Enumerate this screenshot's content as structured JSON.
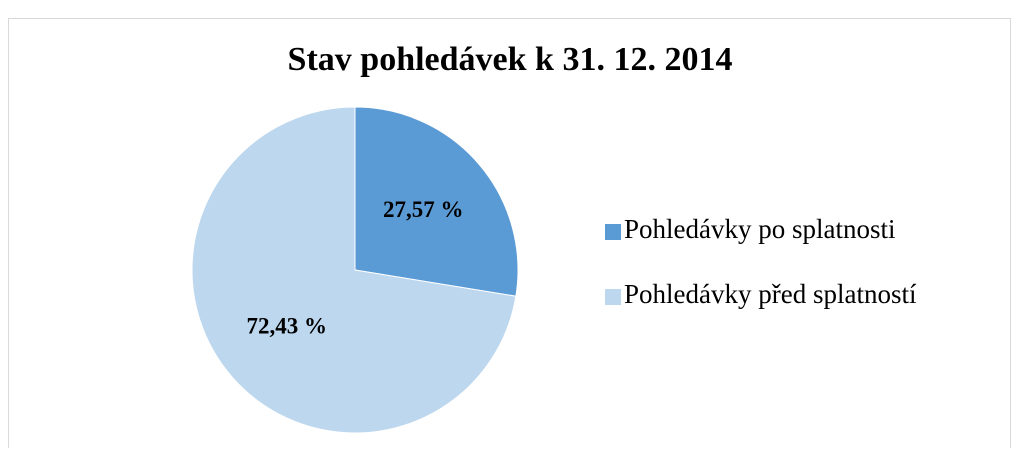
{
  "chart_data": {
    "type": "pie",
    "title": "Stav pohledávek k 31. 12. 2014",
    "categories": [
      "Pohledávky po splatnosti",
      "Pohledávky před splatností"
    ],
    "values": [
      27.57,
      72.43
    ],
    "value_labels": [
      "27,57 %",
      "72,43 %"
    ],
    "colors": [
      "#5b9bd5",
      "#bdd7ee"
    ],
    "legend": "right"
  }
}
